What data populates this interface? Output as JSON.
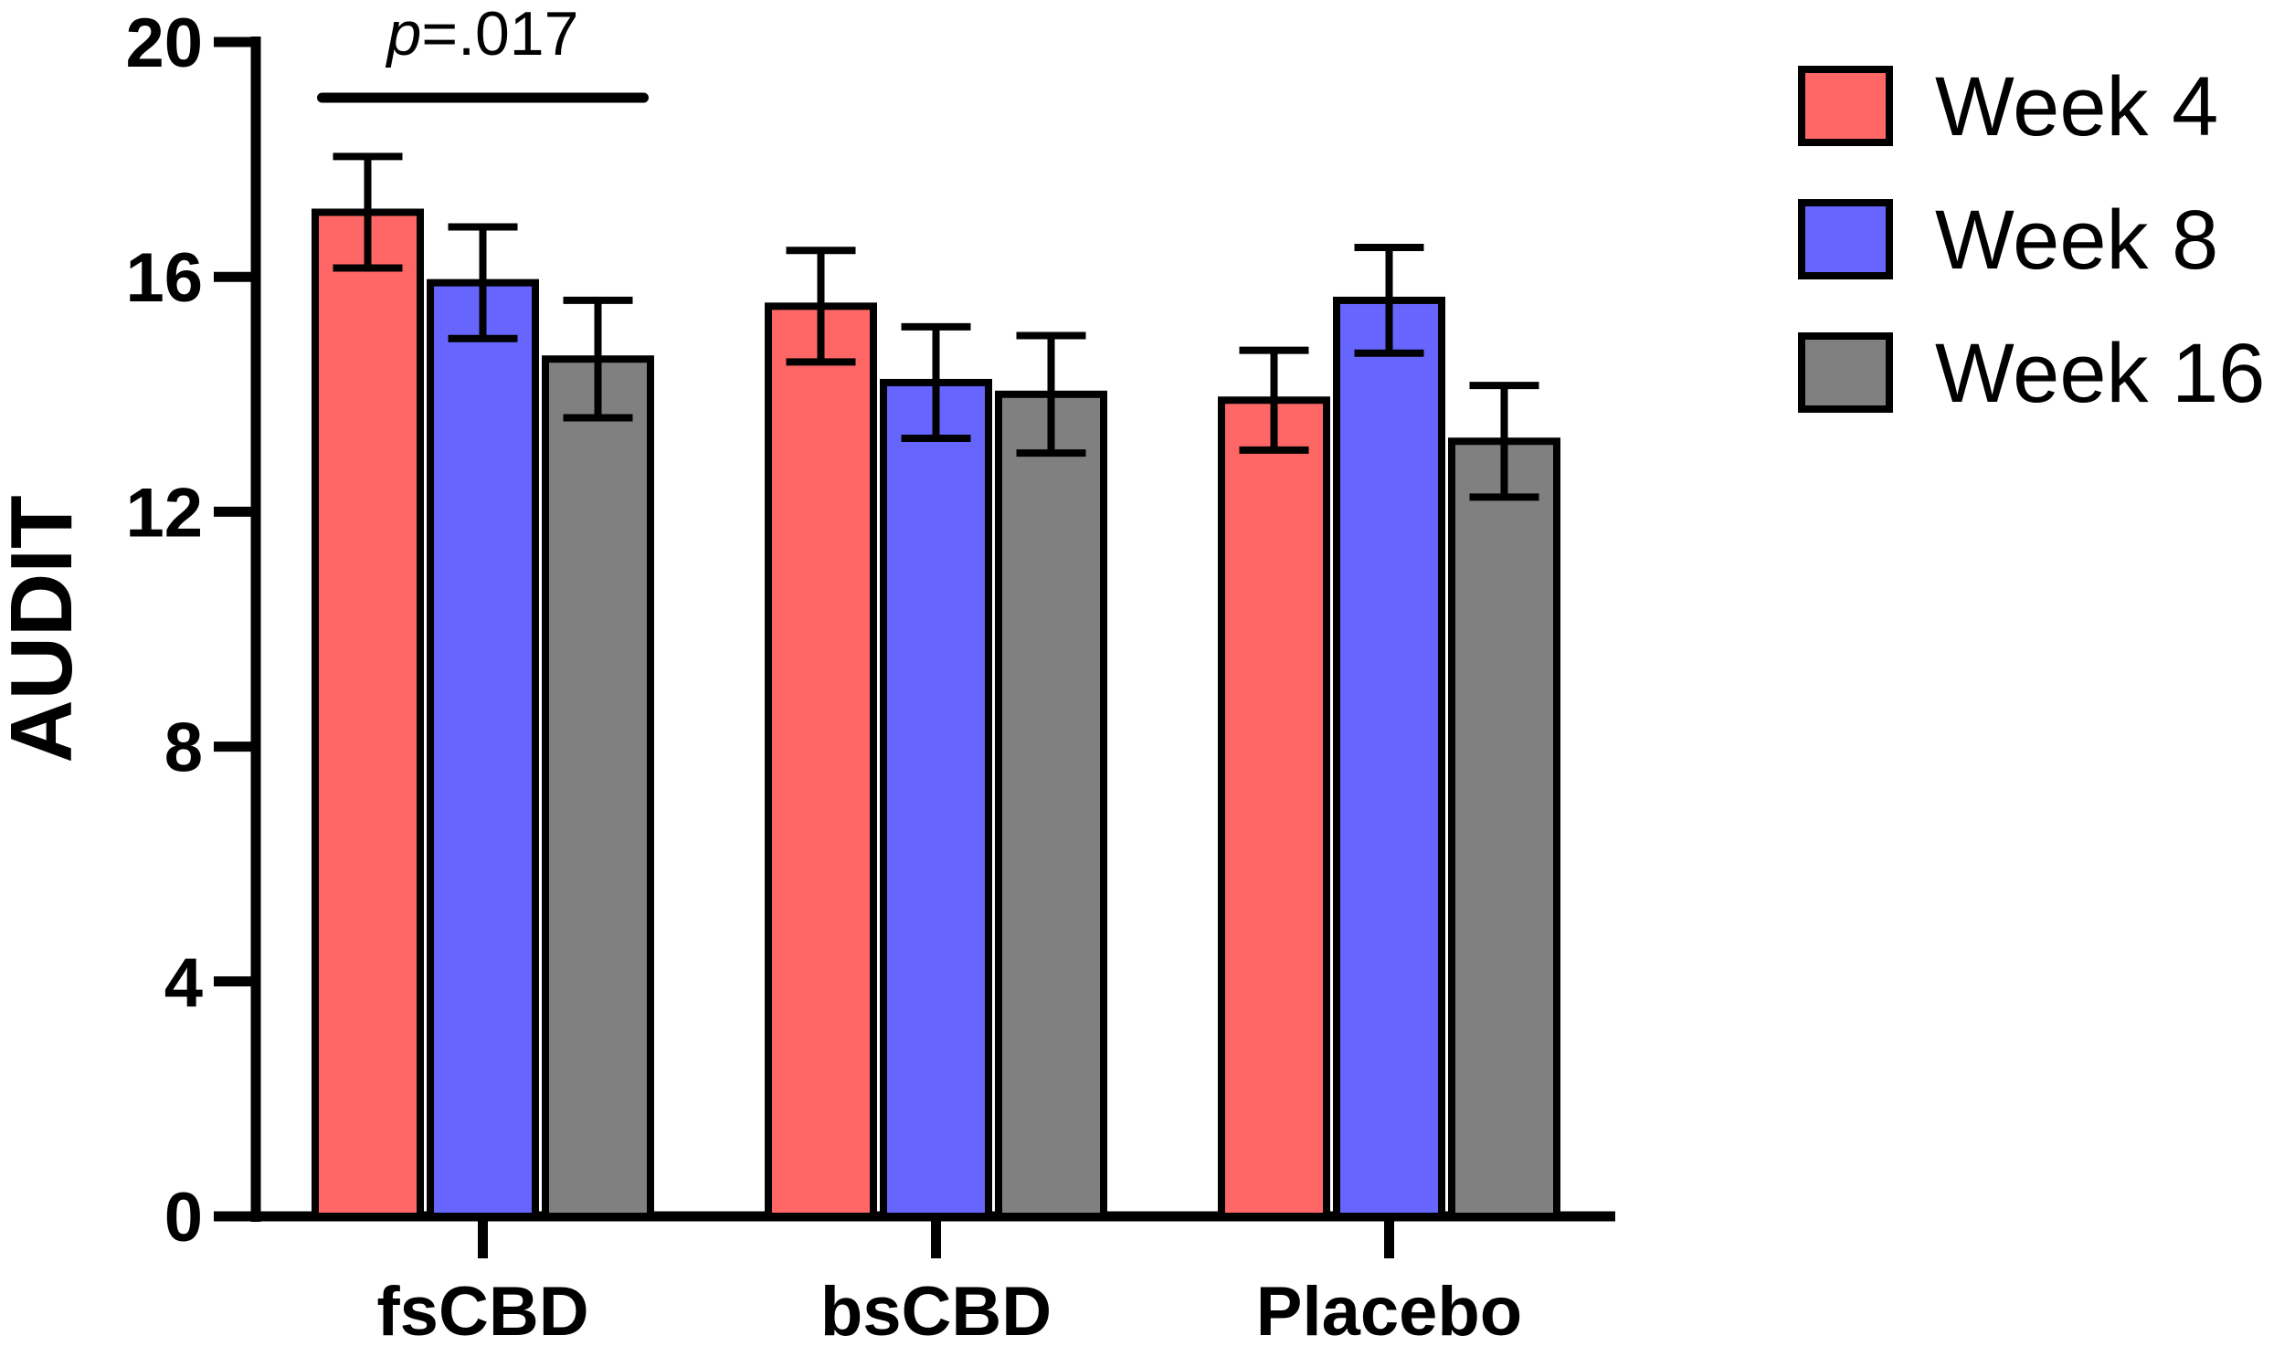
{
  "chart_data": {
    "type": "bar",
    "categories": [
      "fsCBD",
      "bsCBD",
      "Placebo"
    ],
    "series": [
      {
        "name": "Week 4",
        "color": "#ff6666",
        "values": [
          17.1,
          15.5,
          13.9
        ],
        "errors": [
          0.95,
          0.95,
          0.85
        ]
      },
      {
        "name": "Week 8",
        "color": "#6666ff",
        "values": [
          15.9,
          14.2,
          15.6
        ],
        "errors": [
          0.95,
          0.95,
          0.9
        ]
      },
      {
        "name": "Week 16",
        "color": "#808080",
        "values": [
          14.6,
          14.0,
          13.2
        ],
        "errors": [
          1.0,
          1.0,
          0.95
        ]
      }
    ],
    "ylabel": "AUDIT",
    "xlabel": "",
    "title": "",
    "ylim": [
      0,
      20
    ],
    "yticks": [
      0,
      4,
      8,
      12,
      16,
      20
    ],
    "grid": false,
    "legend_position": "top-right",
    "annotation": {
      "prefix": "p",
      "value": "=.017",
      "category": "fsCBD",
      "from_series": 0,
      "to_series": 2
    }
  }
}
